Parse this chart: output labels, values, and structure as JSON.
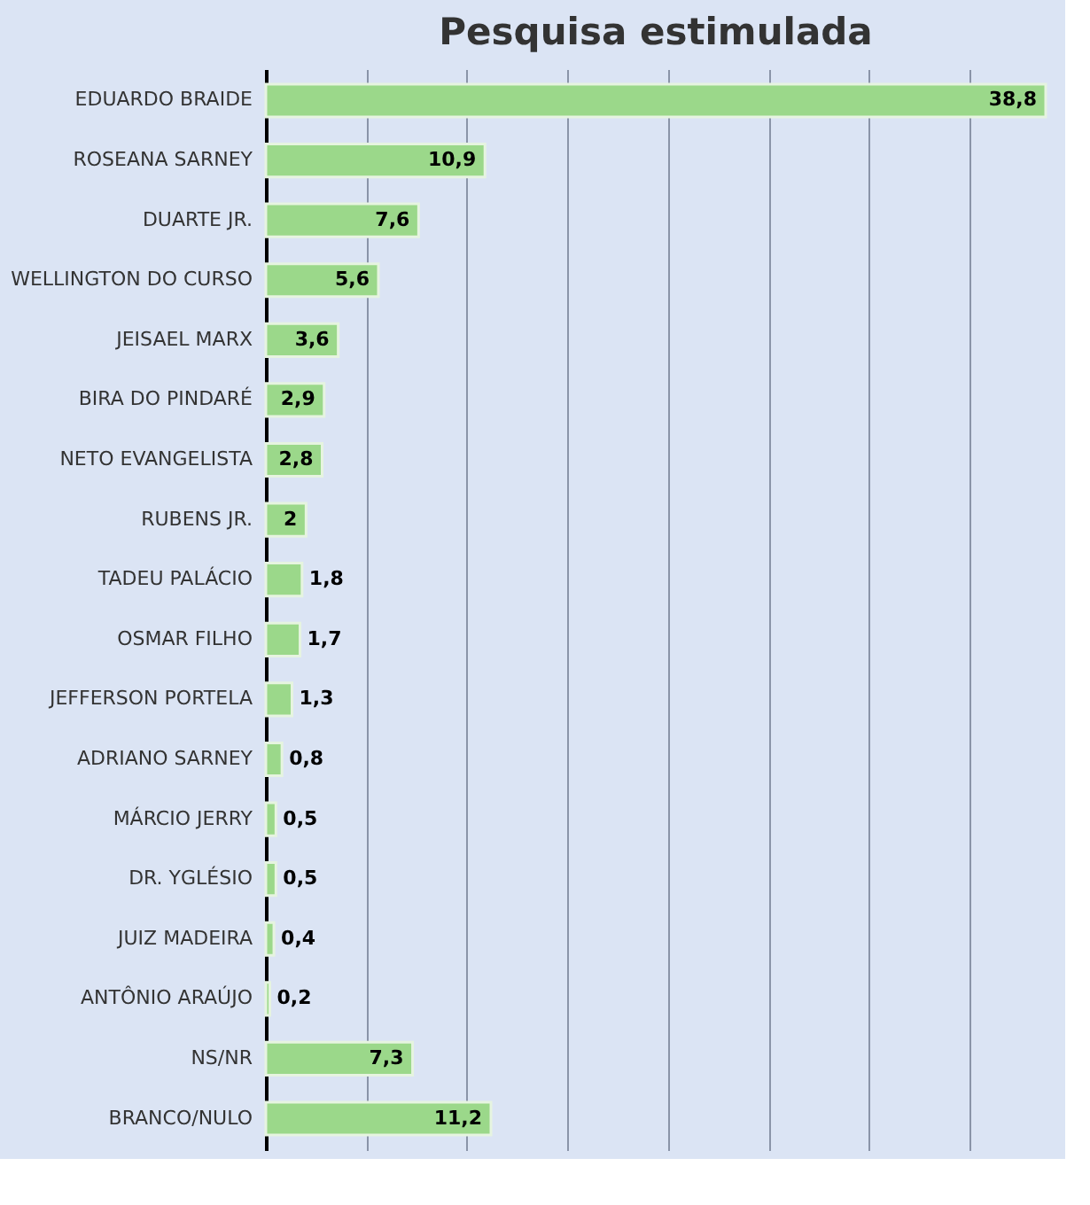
{
  "chart_data": {
    "type": "bar",
    "orientation": "horizontal",
    "title": "Pesquisa estimulada",
    "categories": [
      "EDUARDO BRAIDE",
      "ROSEANA SARNEY",
      "DUARTE JR.",
      "WELLINGTON DO CURSO",
      "JEISAEL MARX",
      "BIRA DO PINDARÉ",
      "NETO EVANGELISTA",
      "RUBENS JR.",
      "TADEU PALÁCIO",
      "OSMAR FILHO",
      "JEFFERSON PORTELA",
      "ADRIANO SARNEY",
      "MÁRCIO JERRY",
      "DR. YGLÉSIO",
      "JUIZ MADEIRA",
      "ANTÔNIO ARAÚJO",
      "NS/NR",
      "BRANCO/NULO"
    ],
    "values": [
      38.8,
      10.9,
      7.6,
      5.6,
      3.6,
      2.9,
      2.8,
      2,
      1.8,
      1.7,
      1.3,
      0.8,
      0.5,
      0.5,
      0.4,
      0.2,
      7.3,
      11.2
    ],
    "value_labels": [
      "38,8",
      "10,9",
      "7,6",
      "5,6",
      "3,6",
      "2,9",
      "2,8",
      "2",
      "1,8",
      "1,7",
      "1,3",
      "0,8",
      "0,5",
      "0,5",
      "0,4",
      "0,2",
      "7,3",
      "11,2"
    ],
    "color": "#9bd88a",
    "xticks": [
      {
        "value": 0,
        "label": null
      },
      {
        "value": 5,
        "label": null
      },
      {
        "value": 10,
        "label": null
      },
      {
        "value": 15,
        "label": null
      },
      {
        "value": 20,
        "label": null
      },
      {
        "value": 25,
        "label": null
      },
      {
        "value": 30,
        "label": null
      },
      {
        "value": 35,
        "label": null
      }
    ],
    "grid": "x",
    "tick_labels": "y"
  }
}
